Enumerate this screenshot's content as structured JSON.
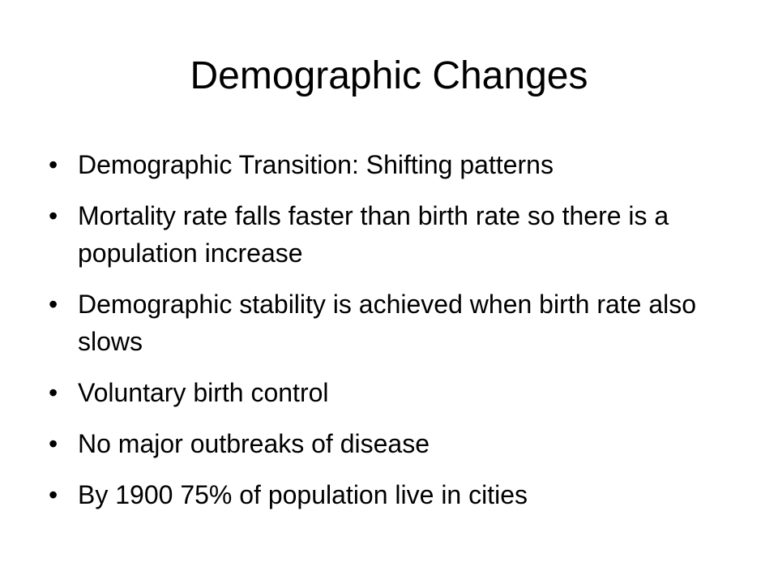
{
  "title": "Demographic Changes",
  "bullets": [
    "Demographic Transition: Shifting patterns",
    "Mortality rate falls faster than birth rate so there is a population increase",
    "Demographic stability is achieved when birth rate also slows",
    "Voluntary birth control",
    "No major outbreaks of disease",
    "By 1900 75% of population live in cities"
  ]
}
